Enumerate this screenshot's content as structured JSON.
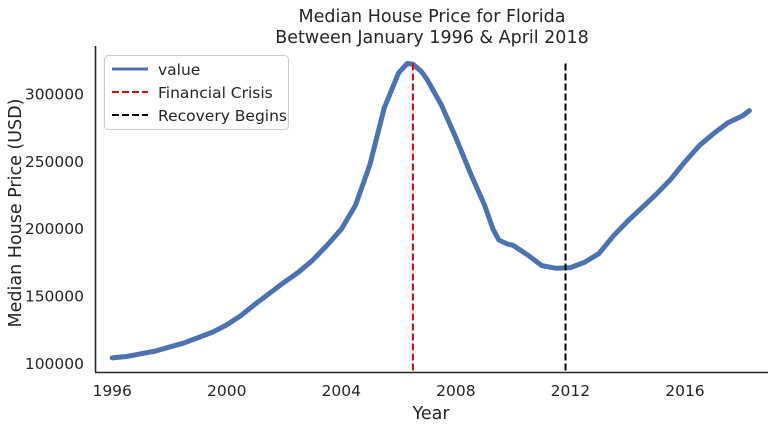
{
  "chart_data": {
    "type": "line",
    "title": "Median House Price for Florida",
    "subtitle": "Between January 1996 & April 2018",
    "xlabel": "Year",
    "ylabel": "Median House Price (USD)",
    "xlim": [
      1995.4,
      2018.9
    ],
    "ylim": [
      94000,
      336000
    ],
    "x_ticks": [
      1996,
      2000,
      2004,
      2008,
      2012,
      2016
    ],
    "y_ticks": [
      100000,
      150000,
      200000,
      250000,
      300000
    ],
    "grid": false,
    "legend_position": "upper-left",
    "series": [
      {
        "name": "value",
        "color": "#4c72b0",
        "x": [
          1996.0,
          1996.5,
          1997.0,
          1997.5,
          1998.0,
          1998.5,
          1999.0,
          1999.5,
          2000.0,
          2000.5,
          2001.0,
          2001.5,
          2002.0,
          2002.5,
          2003.0,
          2003.5,
          2004.0,
          2004.5,
          2005.0,
          2005.5,
          2006.0,
          2006.3,
          2006.5,
          2006.8,
          2007.0,
          2007.5,
          2008.0,
          2008.5,
          2009.0,
          2009.3,
          2009.5,
          2009.8,
          2010.0,
          2010.5,
          2011.0,
          2011.5,
          2012.0,
          2012.5,
          2013.0,
          2013.5,
          2014.0,
          2014.5,
          2015.0,
          2015.5,
          2016.0,
          2016.5,
          2017.0,
          2017.5,
          2018.0,
          2018.25
        ],
        "y": [
          104500,
          105500,
          107500,
          109500,
          112500,
          115500,
          119500,
          123500,
          129000,
          136000,
          144500,
          152500,
          160500,
          168000,
          177000,
          188000,
          200000,
          218000,
          248000,
          290000,
          316000,
          323000,
          322500,
          317000,
          311000,
          292000,
          268000,
          242000,
          218000,
          200000,
          192000,
          189000,
          188000,
          181000,
          173000,
          171000,
          171500,
          175500,
          182000,
          195000,
          206000,
          216000,
          226000,
          237000,
          250000,
          262000,
          271000,
          279000,
          284000,
          288000
        ]
      }
    ],
    "reference_lines": [
      {
        "name": "Financial Crisis",
        "x": 2006.5,
        "color": "#e8000b",
        "style": "dashed"
      },
      {
        "name": "Recovery Begins",
        "x": 2011.83,
        "color": "#000000",
        "style": "dashed"
      }
    ]
  }
}
